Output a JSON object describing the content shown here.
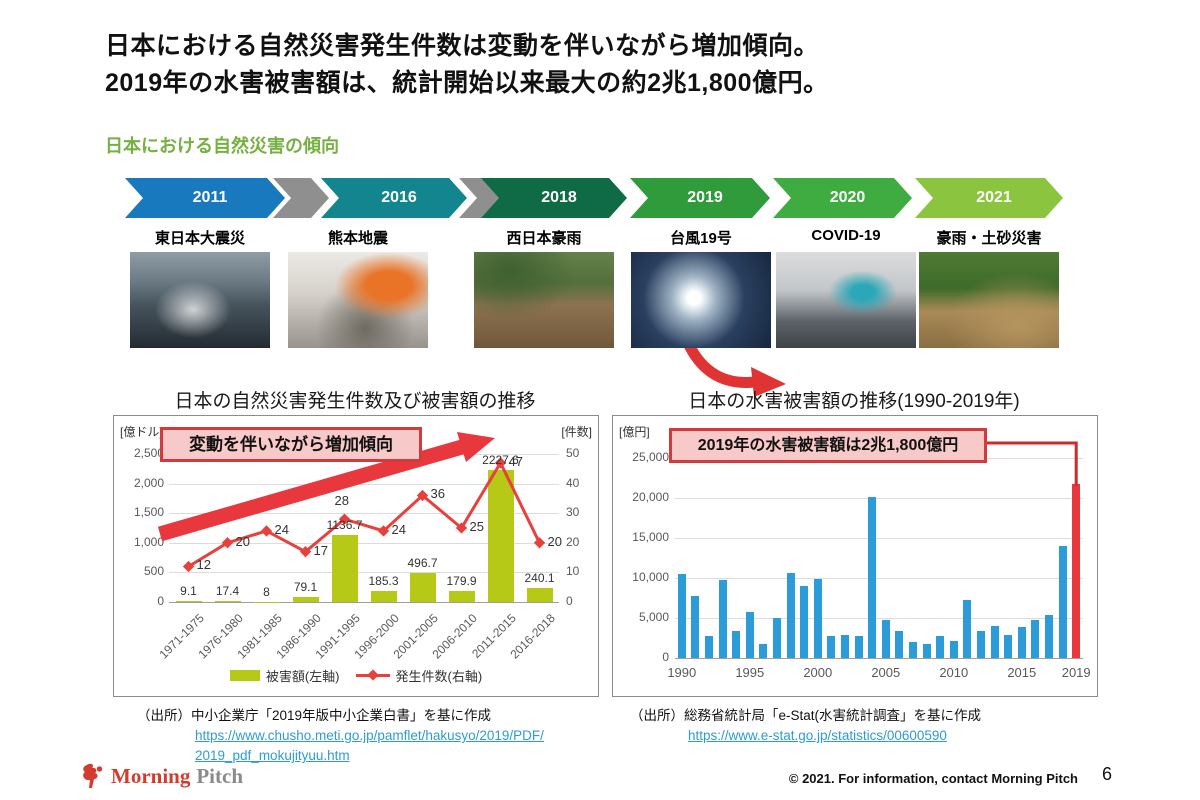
{
  "slide": {
    "title_lines": [
      "日本における自然災害発生件数は変動を伴いながら増加傾向。",
      "2019年の水害被害額は、統計開始以来最大の約2兆1,800億円。"
    ],
    "section_header": "日本における自然災害の傾向"
  },
  "timeline": {
    "connector_color": "#8f8f8f",
    "items": [
      {
        "year": "2011",
        "label": "東日本大震災",
        "color": "#1879BE",
        "photo": "tsunami-storm"
      },
      {
        "year": "2016",
        "label": "熊本地震",
        "color": "#12858F",
        "photo": "earthquake-rescue"
      },
      {
        "year": "2018",
        "label": "西日本豪雨",
        "color": "#0F6B45",
        "photo": "flooded-park"
      },
      {
        "year": "2019",
        "label": "台風19号",
        "color": "#2F9B3A",
        "photo": "typhoon-satellite"
      },
      {
        "year": "2020",
        "label": "COVID-19",
        "color": "#3FAC42",
        "photo": "disinfection"
      },
      {
        "year": "2021",
        "label": "豪雨・土砂災害",
        "color": "#8BC53F",
        "photo": "landslide-mud"
      }
    ]
  },
  "chart_data": [
    {
      "type": "bar+line",
      "title": "日本の自然災害発生件数及び被害額の推移",
      "left_axis_label": "[億ドル]",
      "right_axis_label": "[件数]",
      "annotation": "変動を伴いながら増加傾向",
      "categories": [
        "1971-1975",
        "1976-1980",
        "1981-1985",
        "1986-1990",
        "1991-1995",
        "1996-2000",
        "2001-2005",
        "2006-2010",
        "2011-2015",
        "2016-2018"
      ],
      "series": [
        {
          "name": "被害額(左軸)",
          "type": "bar",
          "axis": "left",
          "color": "#B5C916",
          "values": [
            9.1,
            17.4,
            8,
            79.1,
            1136.7,
            185.3,
            496.7,
            179.9,
            2227.6,
            240.1
          ],
          "value_labels": [
            "9.1",
            "17.4",
            "8",
            "79.1",
            "1136.7",
            "185.3",
            "496.7",
            "179.9",
            "2227.6",
            "240.1"
          ]
        },
        {
          "name": "発生件数(右軸)",
          "type": "line",
          "axis": "right",
          "color": "#E8403C",
          "values": [
            12,
            20,
            24,
            17,
            28,
            24,
            36,
            25,
            47,
            20
          ],
          "value_labels": [
            "12",
            "20",
            "24",
            "17",
            "28",
            "24",
            "36",
            "25",
            "47",
            "20"
          ]
        }
      ],
      "left_ylim": [
        0,
        2500
      ],
      "right_ylim": [
        0,
        50
      ],
      "left_ticks": [
        "0",
        "500",
        "1,000",
        "1,500",
        "2,000",
        "2,500"
      ],
      "right_ticks": [
        "0",
        "10",
        "20",
        "30",
        "40",
        "50"
      ],
      "legend_position": "bottom",
      "grid": true
    },
    {
      "type": "bar",
      "title": "日本の水害被害額の推移(1990-2019年)",
      "axis_label": "[億円]",
      "annotation": "2019年の水害被害額は2兆1,800億円",
      "x": [
        1990,
        1991,
        1992,
        1993,
        1994,
        1995,
        1996,
        1997,
        1998,
        1999,
        2000,
        2001,
        2002,
        2003,
        2004,
        2005,
        2006,
        2007,
        2008,
        2009,
        2010,
        2011,
        2012,
        2013,
        2014,
        2015,
        2016,
        2017,
        2018,
        2019
      ],
      "values": [
        10500,
        7700,
        2700,
        9700,
        3400,
        5800,
        1700,
        5000,
        10600,
        9000,
        9900,
        2800,
        2900,
        2800,
        20100,
        4700,
        3400,
        2000,
        1700,
        2800,
        2100,
        7200,
        3400,
        4000,
        2900,
        3900,
        4700,
        5400,
        14000,
        21800
      ],
      "highlight_year": 2019,
      "bar_color": "#2B9CD8",
      "highlight_color": "#E8383D",
      "connector_color": "#CB2B2B",
      "ylim": [
        0,
        25000
      ],
      "yticks": [
        "0",
        "5,000",
        "10,000",
        "15,000",
        "20,000",
        "25,000"
      ],
      "xticks": [
        "1990",
        "1995",
        "2000",
        "2005",
        "2010",
        "2015",
        "2019"
      ],
      "grid": true
    }
  ],
  "sources": {
    "left": {
      "label": "（出所）中小企業庁「2019年版中小企業白書」を基に作成",
      "url": "https://www.chusho.meti.go.jp/pamflet/hakusyo/2019/PDF/2019_pdf_mokujityuu.htm"
    },
    "right": {
      "label": "（出所）総務省統計局「e-Stat(水害統計調査」を基に作成",
      "url": "https://www.e-stat.go.jp/statistics/00600590"
    }
  },
  "footer": {
    "logo_morning": "Morning",
    "logo_pitch": "Pitch",
    "copyright": "© 2021. For information, contact Morning Pitch",
    "page_number": "6"
  }
}
